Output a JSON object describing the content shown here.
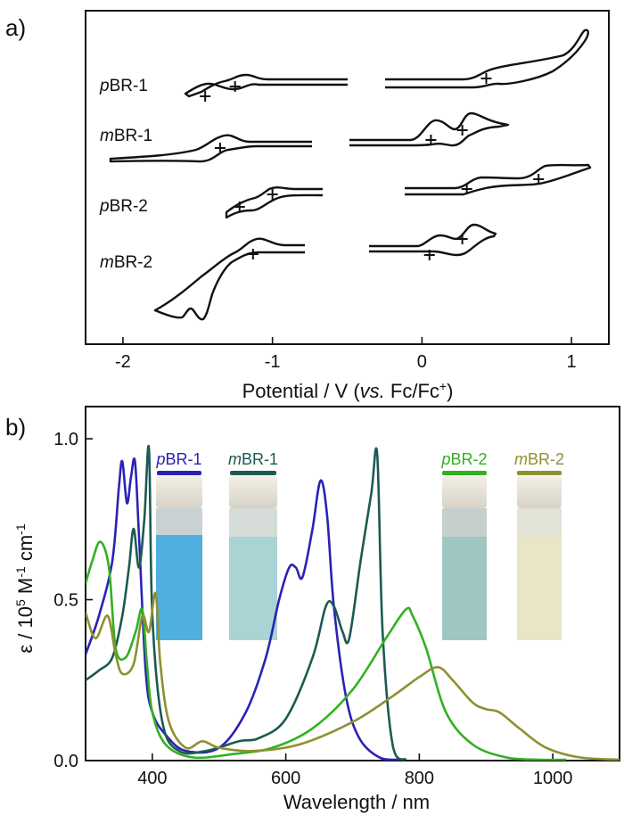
{
  "chart_data": [
    {
      "panel_label": "a)",
      "type": "line",
      "xlabel_main": "Potential / V (",
      "xlabel_italic": "vs.",
      "xlabel_tail": " Fc/Fc",
      "xlabel_sup": "+",
      "xlabel_close": ")",
      "xlim": [
        -2.25,
        1.25
      ],
      "xticks": [
        -2,
        -1,
        0,
        1
      ],
      "xtick_labels": [
        "-2",
        "-1",
        "0",
        "1"
      ],
      "series": [
        {
          "name": "pBR-1",
          "name_italic": "p",
          "name_rest": "BR-1",
          "peak_marks": [
            -1.45,
            -1.25,
            0.43
          ]
        },
        {
          "name": "mBR-1",
          "name_italic": "m",
          "name_rest": "BR-1",
          "peak_marks": [
            -1.35,
            0.06,
            0.27
          ]
        },
        {
          "name": "pBR-2",
          "name_italic": "p",
          "name_rest": "BR-2",
          "peak_marks": [
            -1.22,
            -1.0,
            0.3,
            0.78
          ]
        },
        {
          "name": "mBR-2",
          "name_italic": "m",
          "name_rest": "BR-2",
          "peak_marks": [
            -1.13,
            0.05,
            0.27
          ]
        }
      ]
    },
    {
      "panel_label": "b)",
      "type": "line",
      "xlabel": "Wavelength / nm",
      "ylabel_pre": "ε / 10",
      "ylabel_sup1": "5",
      "ylabel_mid": " M",
      "ylabel_sup2": "-1",
      "ylabel_mid2": " cm",
      "ylabel_sup3": "-1",
      "xlim": [
        300,
        1100
      ],
      "ylim": [
        0.0,
        1.1
      ],
      "xticks": [
        400,
        600,
        800,
        1000
      ],
      "xtick_labels": [
        "400",
        "600",
        "800",
        "1000"
      ],
      "yticks": [
        0.0,
        0.5,
        1.0
      ],
      "ytick_labels": [
        "0.0",
        "0.5",
        "1.0"
      ],
      "series": [
        {
          "name": "pBR-1",
          "name_italic": "p",
          "name_rest": "BR-1",
          "color": "#2b22b5",
          "x": [
            300,
            320,
            340,
            350,
            355,
            362,
            368,
            374,
            380,
            390,
            400,
            420,
            450,
            500,
            540,
            570,
            590,
            605,
            615,
            625,
            640,
            652,
            662,
            672,
            690,
            710,
            740,
            770
          ],
          "y": [
            0.33,
            0.45,
            0.62,
            0.85,
            0.93,
            0.8,
            0.88,
            0.93,
            0.7,
            0.28,
            0.15,
            0.08,
            0.03,
            0.04,
            0.15,
            0.32,
            0.5,
            0.6,
            0.6,
            0.57,
            0.72,
            0.87,
            0.76,
            0.48,
            0.2,
            0.07,
            0.01,
            0.0
          ]
        },
        {
          "name": "mBR-1",
          "name_italic": "m",
          "name_rest": "BR-1",
          "color": "#1c5a52",
          "x": [
            300,
            320,
            340,
            355,
            365,
            372,
            380,
            388,
            395,
            400,
            415,
            440,
            480,
            530,
            560,
            600,
            640,
            660,
            672,
            685,
            695,
            712,
            728,
            737,
            745,
            760,
            780
          ],
          "y": [
            0.25,
            0.28,
            0.32,
            0.45,
            0.6,
            0.72,
            0.6,
            0.75,
            0.97,
            0.45,
            0.12,
            0.03,
            0.03,
            0.06,
            0.07,
            0.13,
            0.32,
            0.48,
            0.48,
            0.4,
            0.38,
            0.62,
            0.83,
            0.95,
            0.4,
            0.05,
            0.0
          ]
        },
        {
          "name": "pBR-2",
          "name_italic": "p",
          "name_rest": "BR-2",
          "color": "#33b023",
          "x": [
            300,
            310,
            322,
            335,
            345,
            360,
            375,
            385,
            392,
            400,
            420,
            460,
            520,
            580,
            640,
            700,
            750,
            780,
            790,
            810,
            840,
            880,
            930,
            980,
            1020
          ],
          "y": [
            0.55,
            0.62,
            0.68,
            0.6,
            0.35,
            0.32,
            0.4,
            0.47,
            0.3,
            0.15,
            0.05,
            0.01,
            0.02,
            0.04,
            0.1,
            0.22,
            0.38,
            0.47,
            0.45,
            0.35,
            0.15,
            0.05,
            0.01,
            0.0,
            0.0
          ]
        },
        {
          "name": "mBR-2",
          "name_italic": "m",
          "name_rest": "BR-2",
          "color": "#8f9031",
          "x": [
            300,
            315,
            333,
            345,
            355,
            372,
            385,
            395,
            405,
            412,
            425,
            450,
            475,
            500,
            550,
            620,
            700,
            760,
            800,
            828,
            850,
            880,
            900,
            920,
            950,
            990,
            1040,
            1100
          ],
          "y": [
            0.46,
            0.38,
            0.45,
            0.33,
            0.27,
            0.3,
            0.45,
            0.4,
            0.52,
            0.3,
            0.12,
            0.04,
            0.06,
            0.04,
            0.03,
            0.05,
            0.12,
            0.2,
            0.26,
            0.29,
            0.25,
            0.18,
            0.16,
            0.15,
            0.1,
            0.04,
            0.01,
            0.0
          ]
        }
      ]
    }
  ]
}
